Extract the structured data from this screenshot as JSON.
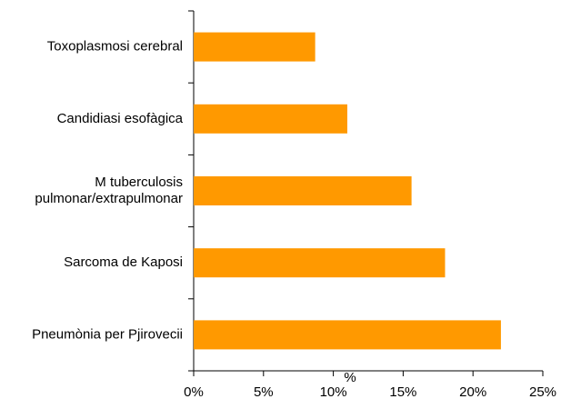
{
  "chart_data": {
    "type": "barh",
    "categories": [
      "Toxoplasmosi cerebral",
      "Candidiasi esofàgica",
      "M tuberculosis\npulmonar/extrapulmonar",
      "Sarcoma de Kaposi",
      "Pneumònia per Pjirovecii"
    ],
    "values": [
      8.7,
      11,
      15.6,
      18,
      22
    ],
    "color": "#ff9900",
    "xlabel": "%",
    "xlim": [
      0,
      25
    ],
    "xticks": [
      {
        "value": 0,
        "label": "0%"
      },
      {
        "value": 5,
        "label": "5%"
      },
      {
        "value": 10,
        "label": "10%"
      },
      {
        "value": 15,
        "label": "15%"
      },
      {
        "value": 20,
        "label": "20%"
      },
      {
        "value": 25,
        "label": "25%"
      }
    ],
    "grid": false
  }
}
